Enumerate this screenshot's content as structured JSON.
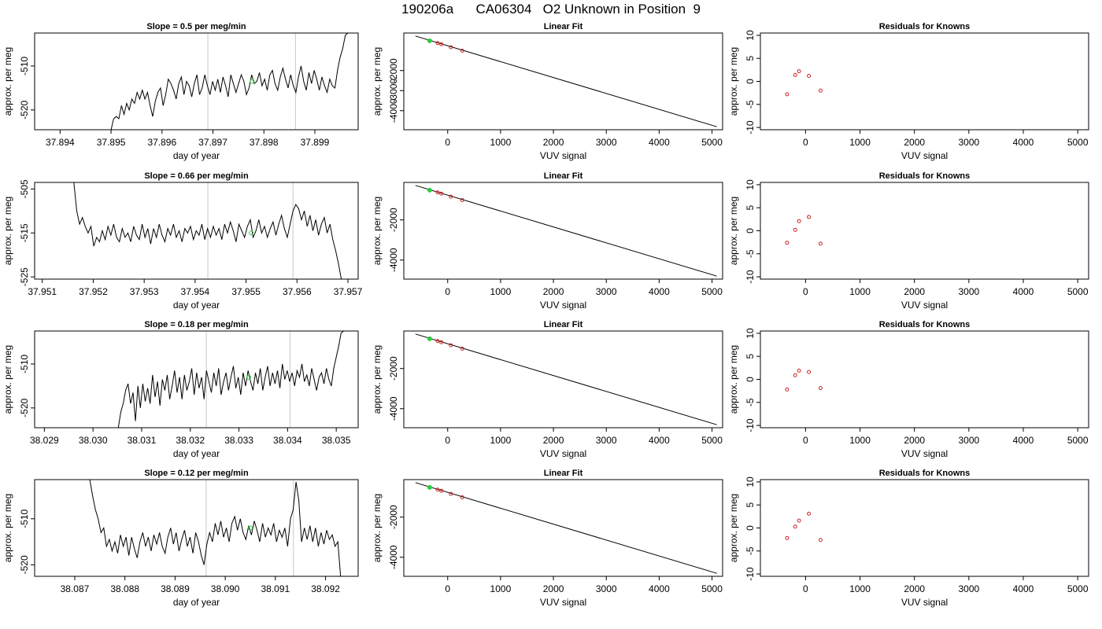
{
  "title": "190206a      CA06304   O2 Unknown in Position  9",
  "chart_data": [
    {
      "type": "line",
      "row": 0,
      "title": "Slope =  0.5  per meg/min",
      "xlabel": "day of year",
      "ylabel": "approx. per meg",
      "xlim": [
        37.8935,
        37.89985
      ],
      "ylim": [
        -524.5,
        -502.5
      ],
      "xticks": [
        37.894,
        37.895,
        37.896,
        37.897,
        37.898,
        37.899
      ],
      "yticks": [
        -510,
        -520
      ],
      "vlines": [
        37.8969,
        37.89862
      ],
      "marker": {
        "x": 37.89777,
        "y": -513.5
      },
      "series": {
        "x0": 37.895,
        "x1": 37.89965,
        "y": [
          -524.5,
          -522,
          -521.5,
          -522,
          -519,
          -521,
          -518.5,
          -520,
          -517.5,
          -518.5,
          -516,
          -517.5,
          -515.5,
          -517.5,
          -516,
          -519,
          -521.5,
          -518,
          -516,
          -515,
          -519,
          -516.5,
          -513,
          -514,
          -515.5,
          -517.5,
          -514,
          -512.5,
          -516.5,
          -513.5,
          -514.5,
          -517,
          -514,
          -512,
          -516.5,
          -515,
          -512,
          -514.5,
          -516.5,
          -513.5,
          -515.5,
          -513,
          -516,
          -512.5,
          -514.5,
          -517,
          -512,
          -514,
          -516,
          -514,
          -512,
          -513.5,
          -516.5,
          -515,
          -512,
          -514,
          -513.5,
          -511.5,
          -514.5,
          -513,
          -515.5,
          -512,
          -511,
          -514,
          -515.5,
          -512.5,
          -510.5,
          -513,
          -515,
          -512,
          -514.5,
          -516,
          -512.5,
          -510,
          -513.5,
          -515.5,
          -511.5,
          -514,
          -511,
          -513,
          -515.5,
          -512.5,
          -514.5,
          -516,
          -513,
          -514.5,
          -515,
          -511,
          -508,
          -506,
          -503,
          -502.5
        ]
      }
    },
    {
      "type": "line",
      "row": 1,
      "title": "Slope =  0.66  per meg/min",
      "xlabel": "day of year",
      "ylabel": "approx. per meg",
      "xlim": [
        37.95085,
        37.9572
      ],
      "ylim": [
        -525.5,
        -503.5
      ],
      "xticks": [
        37.951,
        37.952,
        37.953,
        37.954,
        37.955,
        37.956,
        37.957
      ],
      "yticks": [
        -505,
        -515,
        -525
      ],
      "vlines": [
        37.95425,
        37.95592
      ],
      "marker": {
        "x": 37.9551,
        "y": -515
      },
      "series": {
        "x0": 37.95162,
        "x1": 37.95687,
        "y": [
          -503.5,
          -510,
          -513,
          -511.5,
          -513.5,
          -515,
          -513.5,
          -518,
          -516,
          -517,
          -514.5,
          -516.5,
          -513.5,
          -515.5,
          -513,
          -516,
          -517,
          -514,
          -516,
          -515,
          -517,
          -513.5,
          -515.5,
          -516.5,
          -513,
          -516,
          -514,
          -517.5,
          -514,
          -516,
          -513,
          -515.5,
          -517,
          -514,
          -515.5,
          -513,
          -516,
          -514.5,
          -517,
          -514,
          -515,
          -513.5,
          -516.5,
          -514.5,
          -515.5,
          -513,
          -516.5,
          -514,
          -516,
          -513.5,
          -515.5,
          -514,
          -516.5,
          -513,
          -515,
          -512.5,
          -514.5,
          -517,
          -513,
          -514.5,
          -516,
          -513.5,
          -512,
          -516,
          -514.5,
          -512,
          -515,
          -513.5,
          -516,
          -514,
          -512.5,
          -515.5,
          -513,
          -511,
          -514,
          -516,
          -513,
          -510,
          -508.5,
          -509.5,
          -512,
          -510,
          -513.5,
          -511,
          -514.5,
          -512,
          -515.5,
          -513,
          -511.5,
          -515,
          -513,
          -516.5,
          -519,
          -522,
          -525.5
        ]
      }
    },
    {
      "type": "line",
      "row": 2,
      "title": "Slope =  0.18  per meg/min",
      "xlabel": "day of year",
      "ylabel": "approx. per meg",
      "xlim": [
        38.0288,
        38.03545
      ],
      "ylim": [
        -524.5,
        -502.5
      ],
      "xticks": [
        38.029,
        38.03,
        38.031,
        38.032,
        38.033,
        38.034,
        38.035
      ],
      "yticks": [
        -510,
        -520
      ],
      "vlines": [
        38.03233,
        38.03405
      ],
      "marker": {
        "x": 38.0332,
        "y": -513
      },
      "series": {
        "x0": 38.03052,
        "x1": 38.03515,
        "y": [
          -524.5,
          -521,
          -519,
          -516,
          -514.5,
          -519,
          -516.5,
          -523,
          -515,
          -520,
          -514.5,
          -518.5,
          -515.5,
          -519,
          -512.5,
          -517.5,
          -514,
          -519.5,
          -513.5,
          -516,
          -512.5,
          -518,
          -515,
          -511.5,
          -516.5,
          -513,
          -518,
          -512.5,
          -516,
          -514,
          -511,
          -517,
          -512,
          -515.5,
          -513,
          -518,
          -511.5,
          -514,
          -516.5,
          -512,
          -515,
          -511,
          -517,
          -514,
          -512,
          -516,
          -513,
          -510.5,
          -515.5,
          -513,
          -517,
          -512,
          -515,
          -511.5,
          -514,
          -516,
          -512,
          -514.5,
          -511,
          -516,
          -513,
          -510.5,
          -515,
          -512,
          -514.5,
          -511.5,
          -515.5,
          -510,
          -513.5,
          -511.5,
          -514,
          -512,
          -515,
          -511.5,
          -513,
          -510,
          -514,
          -512.5,
          -515,
          -511,
          -513.5,
          -516,
          -513,
          -512,
          -514.5,
          -511,
          -513.5,
          -515,
          -511,
          -508.5,
          -506,
          -503,
          -502.5
        ]
      }
    },
    {
      "type": "line",
      "row": 3,
      "title": "Slope =  0.12  per meg/min",
      "xlabel": "day of year",
      "ylabel": "approx. per meg",
      "xlim": [
        38.0862,
        38.09265
      ],
      "ylim": [
        -522.5,
        -501.5
      ],
      "xticks": [
        38.087,
        38.088,
        38.089,
        38.09,
        38.091,
        38.092
      ],
      "yticks": [
        -510,
        -520
      ],
      "vlines": [
        38.08962,
        38.09136
      ],
      "marker": {
        "x": 38.0905,
        "y": -512
      },
      "series": {
        "x0": 38.0873,
        "x1": 38.0923,
        "y": [
          -501.5,
          -505,
          -508,
          -510,
          -513,
          -512,
          -516,
          -514.5,
          -517,
          -515,
          -517.5,
          -513.5,
          -516,
          -514,
          -518,
          -514,
          -516.5,
          -518.5,
          -515,
          -513,
          -516,
          -514,
          -517,
          -513.5,
          -515.5,
          -513,
          -516,
          -517.5,
          -514,
          -512,
          -515.5,
          -513,
          -517,
          -514.5,
          -512.5,
          -516,
          -514,
          -517.5,
          -513,
          -515,
          -518,
          -520,
          -515.5,
          -513,
          -515,
          -511,
          -513.5,
          -510.5,
          -514,
          -512,
          -515,
          -511,
          -509.5,
          -512.5,
          -510,
          -513,
          -514.5,
          -511.5,
          -513.5,
          -510.5,
          -512.5,
          -515,
          -511,
          -514,
          -512,
          -513.5,
          -511,
          -515,
          -512.5,
          -514,
          -512,
          -516,
          -510,
          -508,
          -502,
          -506,
          -515,
          -512,
          -514.5,
          -511.5,
          -515,
          -512,
          -516,
          -513,
          -515.5,
          -512.5,
          -514.5,
          -513.5,
          -516,
          -515,
          -522.5
        ]
      }
    },
    {
      "type": "line",
      "row": 0,
      "title": "Linear Fit",
      "xlabel": "VUV signal",
      "ylabel": "approx. per meg",
      "xlim": [
        -830,
        5200
      ],
      "ylim": [
        -4950,
        -130
      ],
      "xticks": [
        0,
        1000,
        2000,
        3000,
        4000,
        5000
      ],
      "yticks": [
        -2000,
        -3000,
        -4000
      ],
      "fit": {
        "x": [
          -610,
          5090
        ],
        "y": [
          -280,
          -4800
        ]
      },
      "knowns": {
        "x": [
          -340,
          -190,
          -120,
          60,
          275
        ],
        "y": [
          -520,
          -630,
          -690,
          -840,
          -1010
        ]
      },
      "unknown": {
        "x": -340,
        "y": -515
      }
    },
    {
      "type": "line",
      "row": 1,
      "title": "Linear Fit",
      "xlabel": "VUV signal",
      "ylabel": "approx. per meg",
      "xlim": [
        -830,
        5200
      ],
      "ylim": [
        -4950,
        -130
      ],
      "xticks": [
        0,
        1000,
        2000,
        3000,
        4000,
        5000
      ],
      "yticks": [
        -2000,
        -4000
      ],
      "fit": {
        "x": [
          -610,
          5090
        ],
        "y": [
          -280,
          -4800
        ]
      },
      "knowns": {
        "x": [
          -340,
          -190,
          -120,
          60,
          275
        ],
        "y": [
          -520,
          -630,
          -690,
          -840,
          -1010
        ]
      },
      "unknown": {
        "x": -340,
        "y": -515
      }
    },
    {
      "type": "line",
      "row": 2,
      "title": "Linear Fit",
      "xlabel": "VUV signal",
      "ylabel": "approx. per meg",
      "xlim": [
        -830,
        5200
      ],
      "ylim": [
        -4950,
        -130
      ],
      "xticks": [
        0,
        1000,
        2000,
        3000,
        4000,
        5000
      ],
      "yticks": [
        -2000,
        -4000
      ],
      "fit": {
        "x": [
          -610,
          5090
        ],
        "y": [
          -280,
          -4800
        ]
      },
      "knowns": {
        "x": [
          -340,
          -190,
          -120,
          60,
          275
        ],
        "y": [
          -520,
          -630,
          -690,
          -840,
          -1010
        ]
      },
      "unknown": {
        "x": -340,
        "y": -515
      }
    },
    {
      "type": "line",
      "row": 3,
      "title": "Linear Fit",
      "xlabel": "VUV signal",
      "ylabel": "approx. per meg",
      "xlim": [
        -830,
        5200
      ],
      "ylim": [
        -4950,
        -130
      ],
      "xticks": [
        0,
        1000,
        2000,
        3000,
        4000,
        5000
      ],
      "yticks": [
        -2000,
        -4000
      ],
      "fit": {
        "x": [
          -610,
          5090
        ],
        "y": [
          -280,
          -4800
        ]
      },
      "knowns": {
        "x": [
          -340,
          -190,
          -120,
          60,
          275
        ],
        "y": [
          -520,
          -630,
          -690,
          -840,
          -1010
        ]
      },
      "unknown": {
        "x": -340,
        "y": -515
      }
    },
    {
      "type": "scatter",
      "row": 0,
      "title": "Residuals for Knowns",
      "xlabel": "VUV signal",
      "ylabel": "approx. per meg",
      "xlim": [
        -830,
        5200
      ],
      "ylim": [
        -10.5,
        10.5
      ],
      "xticks": [
        0,
        1000,
        2000,
        3000,
        4000,
        5000
      ],
      "yticks": [
        10,
        5,
        0,
        -5,
        -10
      ],
      "points": {
        "x": [
          -340,
          -190,
          -120,
          60,
          275
        ],
        "y": [
          -2.8,
          1.4,
          2.2,
          1.2,
          -2.0
        ]
      }
    },
    {
      "type": "scatter",
      "row": 1,
      "title": "Residuals for Knowns",
      "xlabel": "VUV signal",
      "ylabel": "approx. per meg",
      "xlim": [
        -830,
        5200
      ],
      "ylim": [
        -10.5,
        10.5
      ],
      "xticks": [
        0,
        1000,
        2000,
        3000,
        4000,
        5000
      ],
      "yticks": [
        10,
        5,
        0,
        -5,
        -10
      ],
      "points": {
        "x": [
          -340,
          -190,
          -120,
          60,
          275
        ],
        "y": [
          -2.6,
          0.2,
          2.1,
          3.0,
          -2.8
        ]
      }
    },
    {
      "type": "scatter",
      "row": 2,
      "title": "Residuals for Knowns",
      "xlabel": "VUV signal",
      "ylabel": "approx. per meg",
      "xlim": [
        -830,
        5200
      ],
      "ylim": [
        -10.5,
        10.5
      ],
      "xticks": [
        0,
        1000,
        2000,
        3000,
        4000,
        5000
      ],
      "yticks": [
        10,
        5,
        0,
        -5,
        -10
      ],
      "points": {
        "x": [
          -340,
          -190,
          -120,
          60,
          275
        ],
        "y": [
          -2.2,
          0.9,
          1.9,
          1.6,
          -1.9
        ]
      }
    },
    {
      "type": "scatter",
      "row": 3,
      "title": "Residuals for Knowns",
      "xlabel": "VUV signal",
      "ylabel": "approx. per meg",
      "xlim": [
        -830,
        5200
      ],
      "ylim": [
        -10.5,
        10.5
      ],
      "xticks": [
        0,
        1000,
        2000,
        3000,
        4000,
        5000
      ],
      "yticks": [
        10,
        5,
        0,
        -5,
        -10
      ],
      "points": {
        "x": [
          -340,
          -190,
          -120,
          60,
          275
        ],
        "y": [
          -2.2,
          0.3,
          1.6,
          3.1,
          -2.6
        ]
      }
    }
  ],
  "colors": {
    "line": "#000000",
    "vline": "#c8c8c8",
    "marker": "#2ecc40",
    "known": "#cc2222"
  }
}
